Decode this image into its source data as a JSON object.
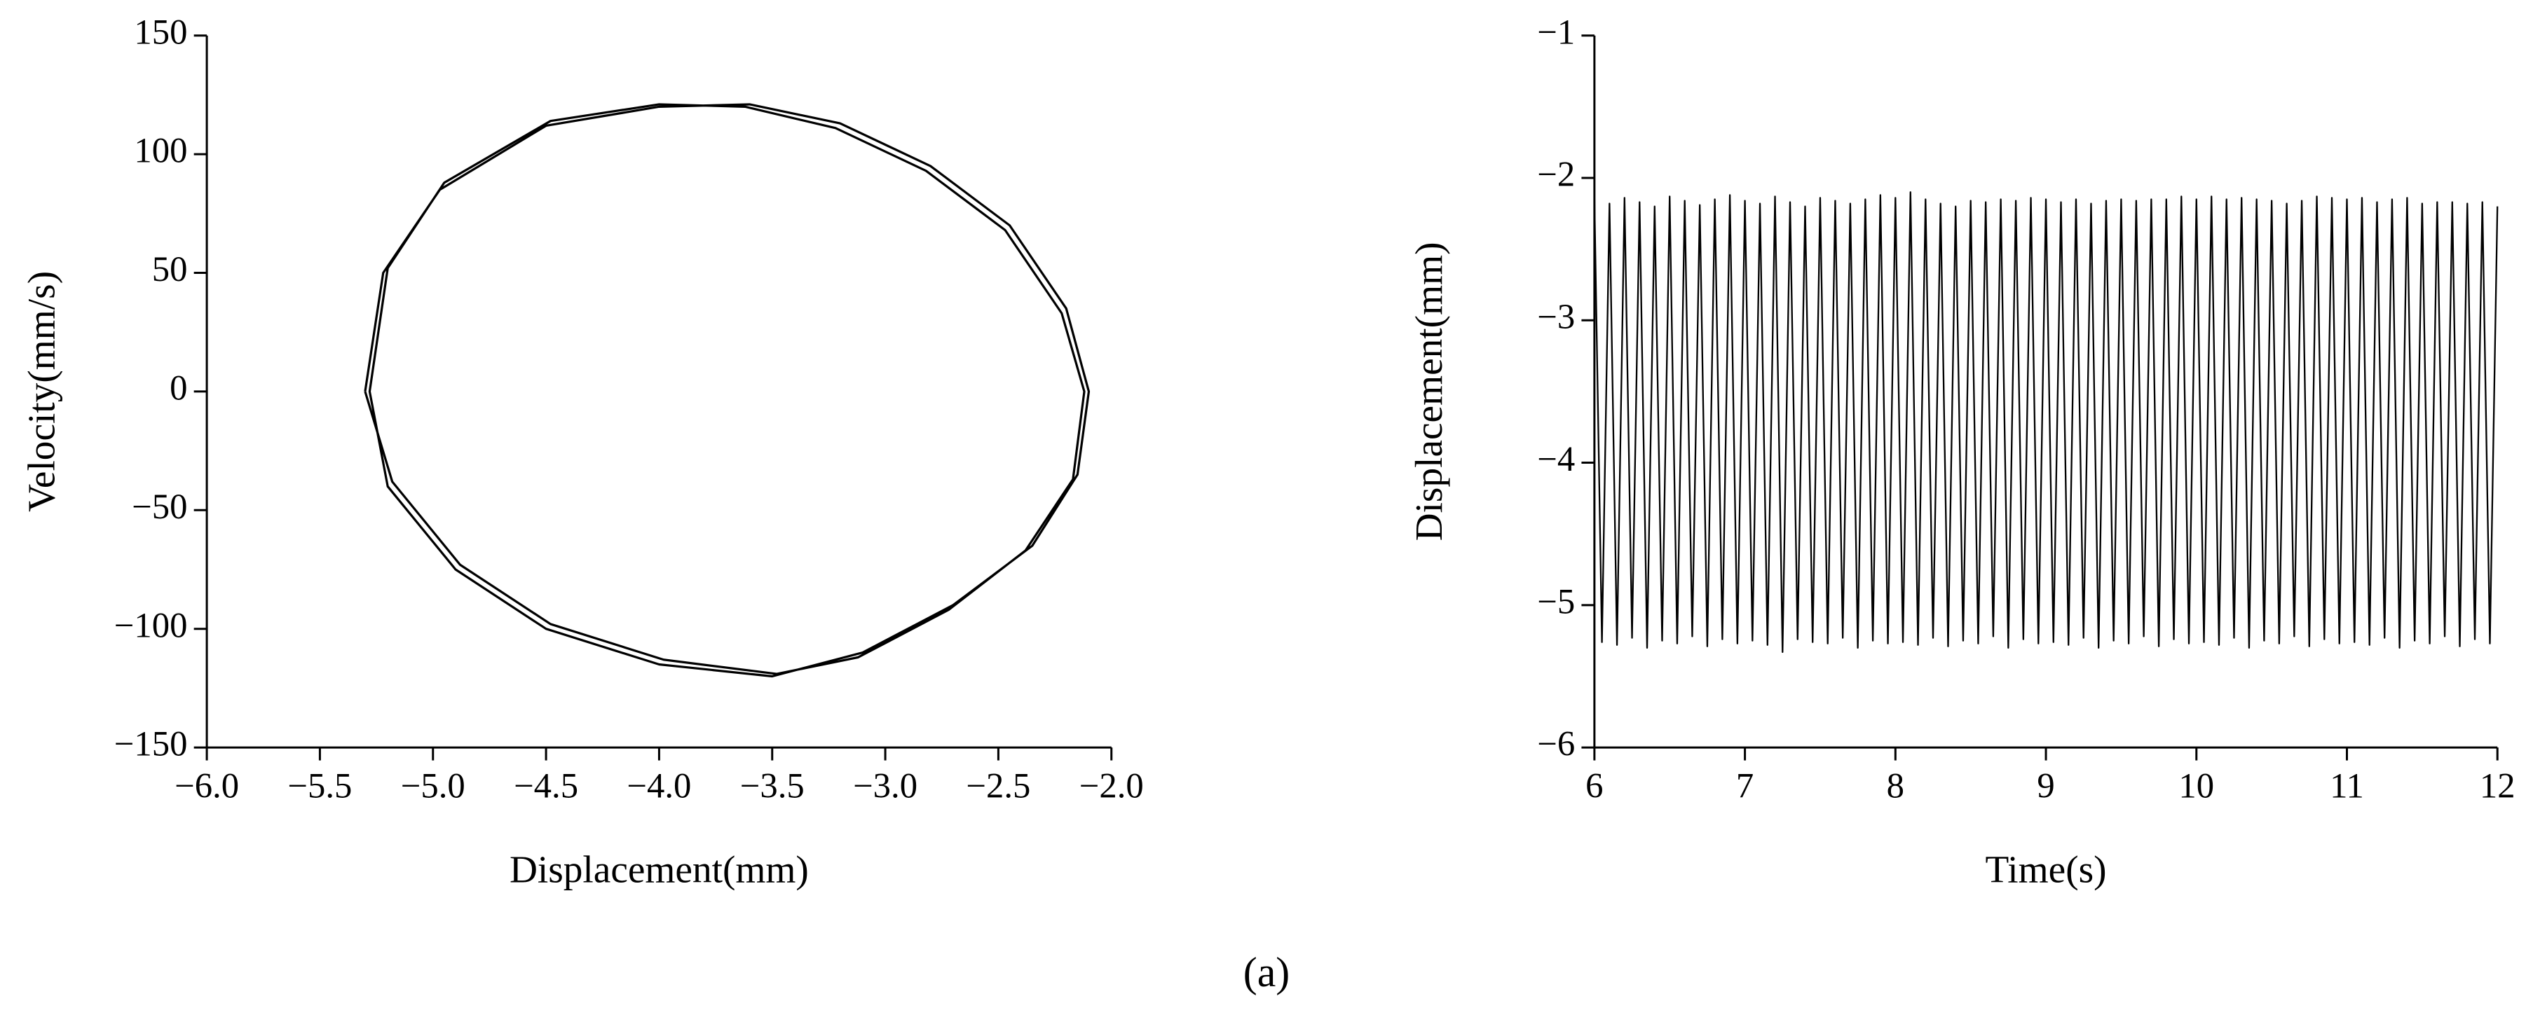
{
  "caption": "(a)",
  "chart_data": [
    {
      "type": "line",
      "color": "#000000",
      "xlabel": "Displacement(mm)",
      "ylabel": "Velocity(mm/s)",
      "x": [
        -5.3,
        -5.22,
        -4.97,
        -4.5,
        -4.0,
        -3.6,
        -3.2,
        -2.8,
        -2.45,
        -2.2,
        -2.1,
        -2.15,
        -2.35,
        -2.7,
        -3.1,
        -3.5,
        -4.0,
        -4.5,
        -4.9,
        -5.2,
        -5.28,
        -5.2,
        -4.95,
        -4.48,
        -4.0,
        -3.62,
        -3.22,
        -2.82,
        -2.47,
        -2.22,
        -2.12,
        -2.17,
        -2.38,
        -2.72,
        -3.12,
        -3.48,
        -3.98,
        -4.48,
        -4.88,
        -5.18,
        -5.3
      ],
      "values": [
        0,
        50,
        85,
        112,
        120,
        121,
        113,
        95,
        70,
        35,
        0,
        -35,
        -65,
        -90,
        -110,
        -120,
        -115,
        -100,
        -75,
        -40,
        0,
        52,
        88,
        114,
        121,
        120,
        111,
        93,
        68,
        33,
        0,
        -37,
        -67,
        -92,
        -112,
        -119,
        -113,
        -98,
        -73,
        -38,
        0
      ],
      "xlim": [
        -6.0,
        -2.0
      ],
      "xticks": [
        {
          "value": -6.0,
          "label": "−6.0"
        },
        {
          "value": -5.5,
          "label": "−5.5"
        },
        {
          "value": -5.0,
          "label": "−5.0"
        },
        {
          "value": -4.5,
          "label": "−4.5"
        },
        {
          "value": -4.0,
          "label": "−4.0"
        },
        {
          "value": -3.5,
          "label": "−3.5"
        },
        {
          "value": -3.0,
          "label": "−3.0"
        },
        {
          "value": -2.5,
          "label": "−2.5"
        },
        {
          "value": -2.0,
          "label": "−2.0"
        }
      ],
      "ylim": [
        -150,
        150
      ],
      "yticks": [
        150,
        100,
        50,
        0,
        {
          "value": -50,
          "label": "−50"
        },
        {
          "value": -100,
          "label": "−100"
        },
        {
          "value": -150,
          "label": "−150"
        }
      ]
    },
    {
      "type": "line",
      "color": "#000000",
      "xlabel": "Time(s)",
      "ylabel": "Displacement(mm)",
      "x": [
        6,
        6.05,
        6.1,
        6.15,
        6.2,
        6.25,
        6.3,
        6.35,
        6.4,
        6.45,
        6.5,
        6.55,
        6.6,
        6.65,
        6.7,
        6.75,
        6.8,
        6.85,
        6.9,
        6.95,
        7,
        7.05,
        7.1,
        7.15,
        7.2,
        7.25,
        7.3,
        7.35,
        7.4,
        7.45,
        7.5,
        7.55,
        7.6,
        7.65,
        7.7,
        7.75,
        7.8,
        7.85,
        7.9,
        7.95,
        8,
        8.05,
        8.1,
        8.15,
        8.2,
        8.25,
        8.3,
        8.35,
        8.4,
        8.45,
        8.5,
        8.55,
        8.6,
        8.65,
        8.7,
        8.75,
        8.8,
        8.85,
        8.9,
        8.95,
        9,
        9.05,
        9.1,
        9.15,
        9.2,
        9.25,
        9.3,
        9.35,
        9.4,
        9.45,
        9.5,
        9.55,
        9.6,
        9.65,
        9.7,
        9.75,
        9.8,
        9.85,
        9.9,
        9.95,
        10,
        10.05,
        10.1,
        10.15,
        10.2,
        10.25,
        10.3,
        10.35,
        10.4,
        10.45,
        10.5,
        10.55,
        10.6,
        10.65,
        10.7,
        10.75,
        10.8,
        10.85,
        10.9,
        10.95,
        11,
        11.05,
        11.1,
        11.15,
        11.2,
        11.25,
        11.3,
        11.35,
        11.4,
        11.45,
        11.5,
        11.55,
        11.6,
        11.65,
        11.7,
        11.75,
        11.8,
        11.85,
        11.9,
        11.95,
        12
      ],
      "values": [
        -2.15,
        -5.26,
        -2.18,
        -5.28,
        -2.14,
        -5.23,
        -2.17,
        -5.3,
        -2.2,
        -5.25,
        -2.13,
        -5.27,
        -2.16,
        -5.22,
        -2.19,
        -5.29,
        -2.15,
        -5.24,
        -2.12,
        -5.27,
        -2.16,
        -5.25,
        -2.18,
        -5.28,
        -2.13,
        -5.33,
        -2.17,
        -5.24,
        -2.2,
        -5.26,
        -2.14,
        -5.27,
        -2.16,
        -5.23,
        -2.18,
        -5.3,
        -2.15,
        -5.25,
        -2.12,
        -5.27,
        -2.14,
        -5.26,
        -2.1,
        -5.28,
        -2.15,
        -5.23,
        -2.18,
        -5.29,
        -2.2,
        -5.25,
        -2.16,
        -5.27,
        -2.17,
        -5.22,
        -2.15,
        -5.3,
        -2.16,
        -5.24,
        -2.14,
        -5.27,
        -2.15,
        -5.26,
        -2.17,
        -5.28,
        -2.15,
        -5.23,
        -2.18,
        -5.3,
        -2.16,
        -5.25,
        -2.15,
        -5.27,
        -2.16,
        -5.22,
        -2.15,
        -5.29,
        -2.15,
        -5.24,
        -2.13,
        -5.27,
        -2.15,
        -5.26,
        -2.13,
        -5.28,
        -2.15,
        -5.23,
        -2.14,
        -5.3,
        -2.15,
        -5.25,
        -2.16,
        -5.27,
        -2.18,
        -5.22,
        -2.16,
        -5.29,
        -2.13,
        -5.24,
        -2.14,
        -5.27,
        -2.15,
        -5.26,
        -2.14,
        -5.28,
        -2.17,
        -5.23,
        -2.15,
        -5.3,
        -2.14,
        -5.25,
        -2.18,
        -5.27,
        -2.17,
        -5.22,
        -2.17,
        -5.29,
        -2.18,
        -5.24,
        -2.17,
        -5.27,
        -2.2
      ],
      "xlim": [
        6,
        12
      ],
      "xticks": [
        6,
        7,
        8,
        9,
        10,
        11,
        12
      ],
      "ylim": [
        -6,
        -1
      ],
      "yticks": [
        {
          "value": -1,
          "label": "−1"
        },
        {
          "value": -2,
          "label": "−2"
        },
        {
          "value": -3,
          "label": "−3"
        },
        {
          "value": -4,
          "label": "−4"
        },
        {
          "value": -5,
          "label": "−5"
        },
        {
          "value": -6,
          "label": "−6"
        }
      ]
    }
  ]
}
